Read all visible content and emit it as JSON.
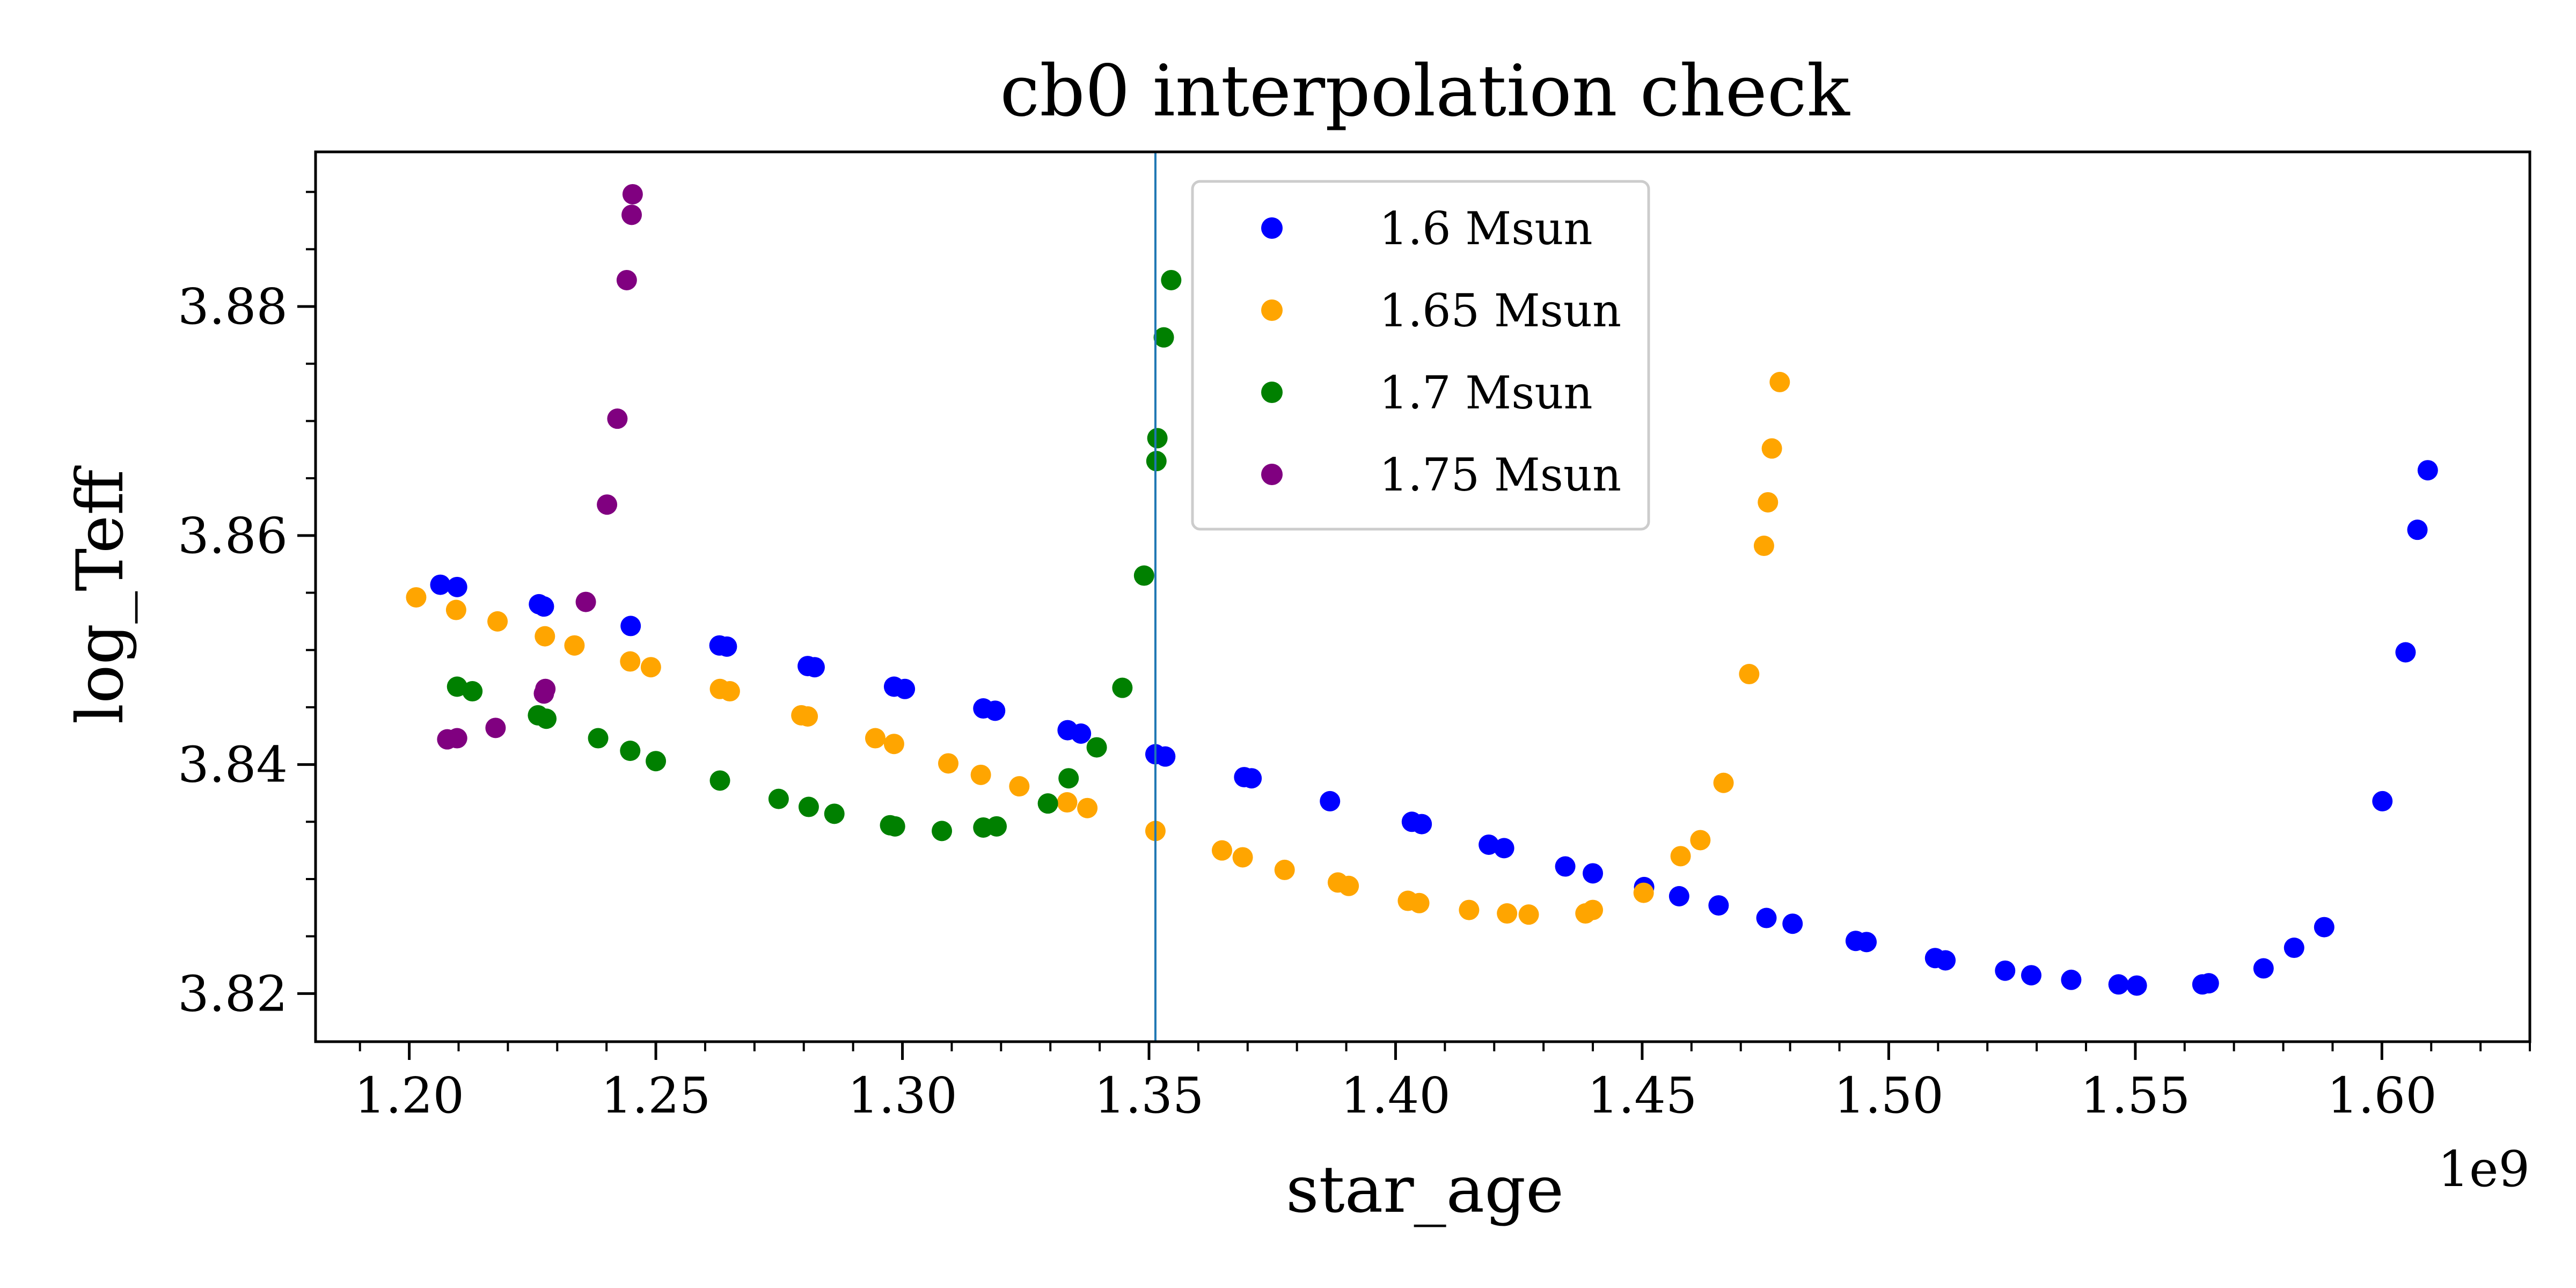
{
  "chart_data": {
    "type": "scatter",
    "title": "cb0 interpolation check",
    "xlabel": "star_age",
    "ylabel": "log_Teff",
    "x_offset_label": "1e9",
    "x_scale": 1000000000.0,
    "xlim": [
      1.181,
      1.63
    ],
    "ylim": [
      3.8158,
      3.8935
    ],
    "x_ticks": [
      1.2,
      1.25,
      1.3,
      1.35,
      1.4,
      1.45,
      1.5,
      1.55,
      1.6
    ],
    "x_tick_labels": [
      "1.20",
      "1.25",
      "1.30",
      "1.35",
      "1.40",
      "1.45",
      "1.50",
      "1.55",
      "1.60"
    ],
    "y_ticks": [
      3.82,
      3.84,
      3.86,
      3.88
    ],
    "y_tick_labels": [
      "3.82",
      "3.84",
      "3.86",
      "3.88"
    ],
    "x_minor_step": 0.01,
    "y_minor_step": 0.005,
    "vline_x": 1.3513,
    "vline_color": "#1f77b4",
    "grid": false,
    "legend_position": "upper-center",
    "series": [
      {
        "name": "1.6 Msun",
        "color": "#0000ff",
        "points": [
          [
            1.2063,
            3.8557
          ],
          [
            1.2097,
            3.8555
          ],
          [
            1.2263,
            3.854
          ],
          [
            1.2273,
            3.8538
          ],
          [
            1.2449,
            3.8521
          ],
          [
            1.2629,
            3.8504
          ],
          [
            1.2644,
            3.8503
          ],
          [
            1.2808,
            3.8486
          ],
          [
            1.2822,
            3.8485
          ],
          [
            1.2983,
            3.8468
          ],
          [
            1.3005,
            3.8466
          ],
          [
            1.3164,
            3.8449
          ],
          [
            1.3188,
            3.8447
          ],
          [
            1.3335,
            3.843
          ],
          [
            1.3362,
            3.8427
          ],
          [
            1.3513,
            3.8409
          ],
          [
            1.3533,
            3.8407
          ],
          [
            1.3693,
            3.8389
          ],
          [
            1.3708,
            3.8388
          ],
          [
            1.3867,
            3.8368
          ],
          [
            1.4033,
            3.835
          ],
          [
            1.4053,
            3.8348
          ],
          [
            1.4189,
            3.833
          ],
          [
            1.422,
            3.8327
          ],
          [
            1.4344,
            3.8311
          ],
          [
            1.44,
            3.8305
          ],
          [
            1.4504,
            3.8293
          ],
          [
            1.4575,
            3.8285
          ],
          [
            1.4655,
            3.8277
          ],
          [
            1.4752,
            3.8266
          ],
          [
            1.4805,
            3.8261
          ],
          [
            1.4933,
            3.8246
          ],
          [
            1.4955,
            3.8245
          ],
          [
            1.5094,
            3.8231
          ],
          [
            1.5115,
            3.8229
          ],
          [
            1.5236,
            3.822
          ],
          [
            1.5289,
            3.8216
          ],
          [
            1.537,
            3.8212
          ],
          [
            1.5466,
            3.8208
          ],
          [
            1.5503,
            3.8207
          ],
          [
            1.5636,
            3.8208
          ],
          [
            1.5649,
            3.8209
          ],
          [
            1.576,
            3.8222
          ],
          [
            1.5822,
            3.824
          ],
          [
            1.5883,
            3.8258
          ],
          [
            1.6001,
            3.8368
          ],
          [
            1.6048,
            3.8498
          ],
          [
            1.6072,
            3.8605
          ],
          [
            1.6093,
            3.8657
          ]
        ]
      },
      {
        "name": "1.65 Msun",
        "color": "#ffa500",
        "points": [
          [
            1.2014,
            3.8546
          ],
          [
            1.2095,
            3.8535
          ],
          [
            1.2179,
            3.8525
          ],
          [
            1.2275,
            3.8512
          ],
          [
            1.2335,
            3.8504
          ],
          [
            1.2448,
            3.849
          ],
          [
            1.249,
            3.8485
          ],
          [
            1.263,
            3.8466
          ],
          [
            1.265,
            3.8464
          ],
          [
            1.2795,
            3.8443
          ],
          [
            1.2808,
            3.8442
          ],
          [
            1.2945,
            3.8423
          ],
          [
            1.2983,
            3.8418
          ],
          [
            1.3093,
            3.8401
          ],
          [
            1.3159,
            3.8391
          ],
          [
            1.3237,
            3.8381
          ],
          [
            1.3334,
            3.8367
          ],
          [
            1.3375,
            3.8362
          ],
          [
            1.3513,
            3.8342
          ],
          [
            1.3648,
            3.8325
          ],
          [
            1.369,
            3.8319
          ],
          [
            1.3775,
            3.8308
          ],
          [
            1.3883,
            3.8297
          ],
          [
            1.3905,
            3.8294
          ],
          [
            1.4025,
            3.8281
          ],
          [
            1.4048,
            3.8279
          ],
          [
            1.4149,
            3.8273
          ],
          [
            1.4226,
            3.827
          ],
          [
            1.427,
            3.8269
          ],
          [
            1.4385,
            3.827
          ],
          [
            1.44,
            3.8273
          ],
          [
            1.4503,
            3.8288
          ],
          [
            1.4578,
            3.832
          ],
          [
            1.4618,
            3.8334
          ],
          [
            1.4665,
            3.8384
          ],
          [
            1.4717,
            3.8479
          ],
          [
            1.4747,
            3.8591
          ],
          [
            1.4755,
            3.8629
          ],
          [
            1.4763,
            3.8676
          ],
          [
            1.4779,
            3.8734
          ]
        ]
      },
      {
        "name": "1.7 Msun",
        "color": "#008000",
        "points": [
          [
            1.2097,
            3.8468
          ],
          [
            1.2128,
            3.8464
          ],
          [
            1.2261,
            3.8443
          ],
          [
            1.2278,
            3.844
          ],
          [
            1.2383,
            3.8423
          ],
          [
            1.2448,
            3.8412
          ],
          [
            1.25,
            3.8403
          ],
          [
            1.263,
            3.8386
          ],
          [
            1.2749,
            3.837
          ],
          [
            1.281,
            3.8363
          ],
          [
            1.2862,
            3.8357
          ],
          [
            1.2975,
            3.8347
          ],
          [
            1.2985,
            3.8346
          ],
          [
            1.308,
            3.8342
          ],
          [
            1.3164,
            3.8345
          ],
          [
            1.3191,
            3.8346
          ],
          [
            1.3295,
            3.8366
          ],
          [
            1.3337,
            3.8388
          ],
          [
            1.3394,
            3.8415
          ],
          [
            1.3446,
            3.8467
          ],
          [
            1.349,
            3.8565
          ],
          [
            1.3515,
            3.8665
          ],
          [
            1.3517,
            3.8685
          ],
          [
            1.353,
            3.8773
          ],
          [
            1.3545,
            3.8823
          ]
        ]
      },
      {
        "name": "1.75 Msun",
        "color": "#800080",
        "points": [
          [
            1.2077,
            3.8422
          ],
          [
            1.2097,
            3.8423
          ],
          [
            1.2175,
            3.8432
          ],
          [
            1.2273,
            3.8462
          ],
          [
            1.2276,
            3.8466
          ],
          [
            1.2358,
            3.8542
          ],
          [
            1.2401,
            3.8627
          ],
          [
            1.2422,
            3.8702
          ],
          [
            1.2441,
            3.8823
          ],
          [
            1.2451,
            3.888
          ],
          [
            1.2453,
            3.8898
          ]
        ]
      }
    ]
  }
}
